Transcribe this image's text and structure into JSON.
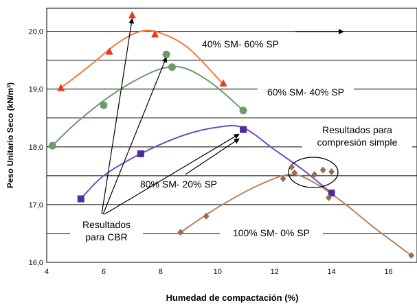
{
  "chart_data": {
    "type": "line",
    "xlabel": "Humedad de compactación (%)",
    "ylabel": "Peso Unitario Seco (kN/m³)",
    "xlim": [
      4,
      17
    ],
    "ylim": [
      16.0,
      20.4
    ],
    "x_ticks": [
      "4",
      "6",
      "8",
      "10",
      "12",
      "14",
      "16"
    ],
    "y_ticks": [
      "16,0",
      "17,0",
      "18,0",
      "19,0",
      "20,0"
    ],
    "grid": "horizontal",
    "series": [
      {
        "name": "40% SM- 60% SP",
        "color": "#e8381b",
        "curve_color": "#f07a3c",
        "marker": "triangle",
        "points": [
          [
            4.5,
            19.02
          ],
          [
            6.2,
            19.65
          ],
          [
            7.0,
            20.28
          ],
          [
            7.8,
            19.95
          ],
          [
            10.2,
            19.1
          ]
        ],
        "curve": [
          [
            4.5,
            19.02
          ],
          [
            5.5,
            19.4
          ],
          [
            6.5,
            19.8
          ],
          [
            7.3,
            20.0
          ],
          [
            8.0,
            19.97
          ],
          [
            9.0,
            19.7
          ],
          [
            10.2,
            19.08
          ]
        ]
      },
      {
        "name": "60% SM- 40% SP",
        "color": "#6b9a6b",
        "curve_color": "#6b9a6b",
        "marker": "circle",
        "points": [
          [
            4.2,
            18.02
          ],
          [
            6.0,
            18.72
          ],
          [
            8.2,
            19.6
          ],
          [
            8.4,
            19.38
          ],
          [
            10.9,
            18.63
          ]
        ],
        "curve": [
          [
            4.2,
            18.02
          ],
          [
            5.0,
            18.4
          ],
          [
            6.0,
            18.8
          ],
          [
            7.0,
            19.12
          ],
          [
            8.0,
            19.35
          ],
          [
            8.8,
            19.37
          ],
          [
            9.8,
            19.1
          ],
          [
            10.9,
            18.63
          ]
        ]
      },
      {
        "name": "80% SM- 20% SP",
        "color": "#4a2e9c",
        "curve_color": "#6a4fc2",
        "marker": "square",
        "points": [
          [
            5.2,
            17.1
          ],
          [
            7.3,
            17.88
          ],
          [
            10.9,
            18.3
          ],
          [
            14.0,
            17.2
          ]
        ],
        "curve": [
          [
            5.2,
            17.1
          ],
          [
            6.0,
            17.5
          ],
          [
            7.3,
            17.88
          ],
          [
            8.8,
            18.2
          ],
          [
            10.0,
            18.34
          ],
          [
            10.9,
            18.33
          ],
          [
            12.0,
            17.95
          ],
          [
            13.0,
            17.6
          ],
          [
            14.0,
            17.2
          ]
        ]
      },
      {
        "name": "100% SM- 0% SP",
        "color": "#9c6b4a",
        "curve_color": "#b98259",
        "marker": "diamond",
        "points": [
          [
            8.7,
            16.52
          ],
          [
            9.6,
            16.8
          ],
          [
            12.3,
            17.45
          ],
          [
            12.6,
            17.65
          ],
          [
            12.7,
            17.55
          ],
          [
            13.4,
            17.52
          ],
          [
            13.7,
            17.6
          ],
          [
            14.0,
            17.57
          ],
          [
            13.9,
            17.12
          ],
          [
            16.8,
            16.12
          ]
        ],
        "curve": [
          [
            8.7,
            16.52
          ],
          [
            10.0,
            16.95
          ],
          [
            11.5,
            17.35
          ],
          [
            12.6,
            17.52
          ],
          [
            13.5,
            17.35
          ],
          [
            14.5,
            17.0
          ],
          [
            15.5,
            16.6
          ],
          [
            16.8,
            16.12
          ]
        ]
      }
    ],
    "annotations": {
      "cbr_label_line1": "Resultados",
      "cbr_label_line2": "para CBR",
      "compresion_label_line1": "Resultados para",
      "compresion_label_line2": "compresión simple"
    }
  }
}
